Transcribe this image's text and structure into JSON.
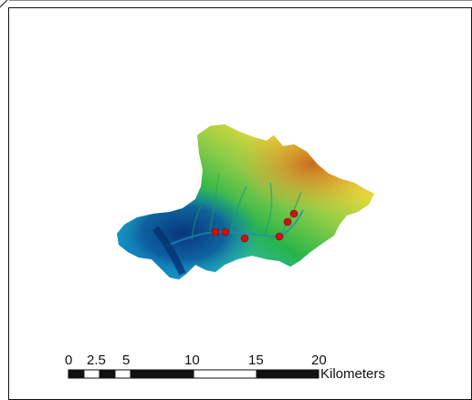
{
  "map": {
    "colors": {
      "background": "#ffffff",
      "frame": "#111111",
      "low_elevation": "#0b4a8f",
      "mid_low": "#1aa0c8",
      "mid": "#23b54a",
      "mid_high": "#9fd04a",
      "high": "#f0c23a",
      "peak": "#d9781f",
      "sample_points": "#c81414"
    },
    "legend": {
      "scale_bar": {
        "labels": [
          "0",
          "2.5",
          "5",
          "10",
          "15",
          "20"
        ],
        "unit": "Kilometers"
      }
    },
    "sample_point_count": 7
  }
}
